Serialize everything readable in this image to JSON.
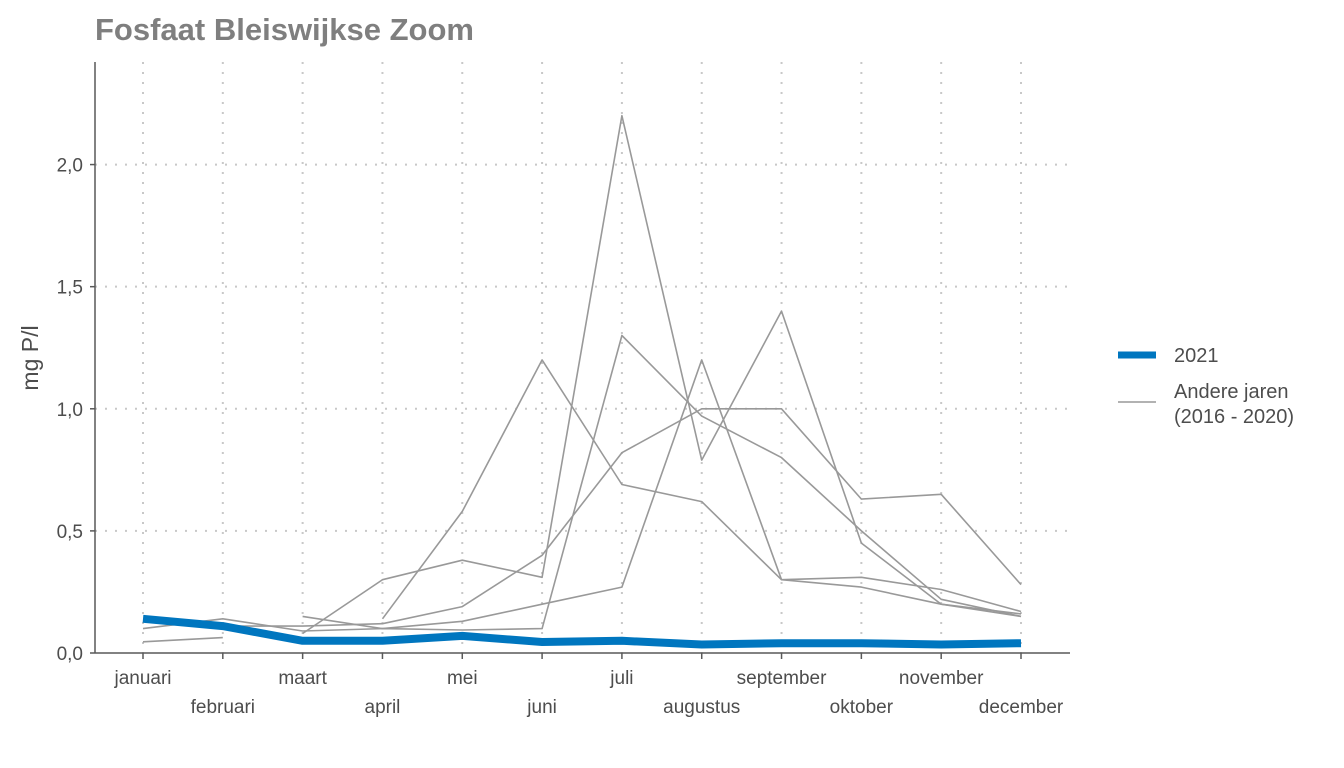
{
  "chart_data": {
    "type": "line",
    "title": "Fosfaat Bleiswijkse Zoom",
    "xlabel": "",
    "ylabel": "mg P/l",
    "categories": [
      "januari",
      "februari",
      "maart",
      "april",
      "mei",
      "juni",
      "juli",
      "augustus",
      "september",
      "oktober",
      "november",
      "december"
    ],
    "ylim": [
      0,
      2.42
    ],
    "yticks": [
      0,
      0.5,
      1.0,
      1.5,
      2.0
    ],
    "ytick_labels": [
      "0,0",
      "0,5",
      "1,0",
      "1,5",
      "2,0"
    ],
    "grid": true,
    "legend_position": "right",
    "series": [
      {
        "name": "2021",
        "color": "#0076BF",
        "emphasis": true,
        "values": [
          0.14,
          0.11,
          0.05,
          0.05,
          0.07,
          0.045,
          0.05,
          0.035,
          0.04,
          0.04,
          0.035,
          0.04
        ]
      },
      {
        "color": "#999999",
        "values": [
          null,
          null,
          0.08,
          0.3,
          0.38,
          0.31,
          2.2,
          0.79,
          1.4,
          0.45,
          0.2,
          0.15
        ]
      },
      {
        "color": "#999999",
        "values": [
          0.1,
          0.14,
          0.09,
          0.1,
          0.094,
          0.1,
          1.3,
          0.97,
          0.8,
          0.5,
          0.22,
          0.15
        ]
      },
      {
        "color": "#999999",
        "values": [
          null,
          null,
          0.15,
          0.1,
          0.13,
          0.2,
          0.27,
          1.2,
          0.3,
          0.31,
          0.26,
          0.17
        ]
      },
      {
        "color": "#999999",
        "values": [
          0.046,
          0.063,
          null,
          0.14,
          0.58,
          1.2,
          0.69,
          0.62,
          0.3,
          0.27,
          0.2,
          0.16
        ]
      },
      {
        "color": "#999999",
        "values": [
          null,
          0.11,
          0.11,
          0.12,
          0.19,
          0.4,
          0.82,
          1.0,
          1.0,
          0.63,
          0.65,
          0.28
        ]
      }
    ],
    "legend": [
      {
        "label": "2021",
        "color": "#0076BF"
      },
      {
        "label": "Andere jaren",
        "label2": "(2016 - 2020)",
        "color": "#999999"
      }
    ]
  }
}
